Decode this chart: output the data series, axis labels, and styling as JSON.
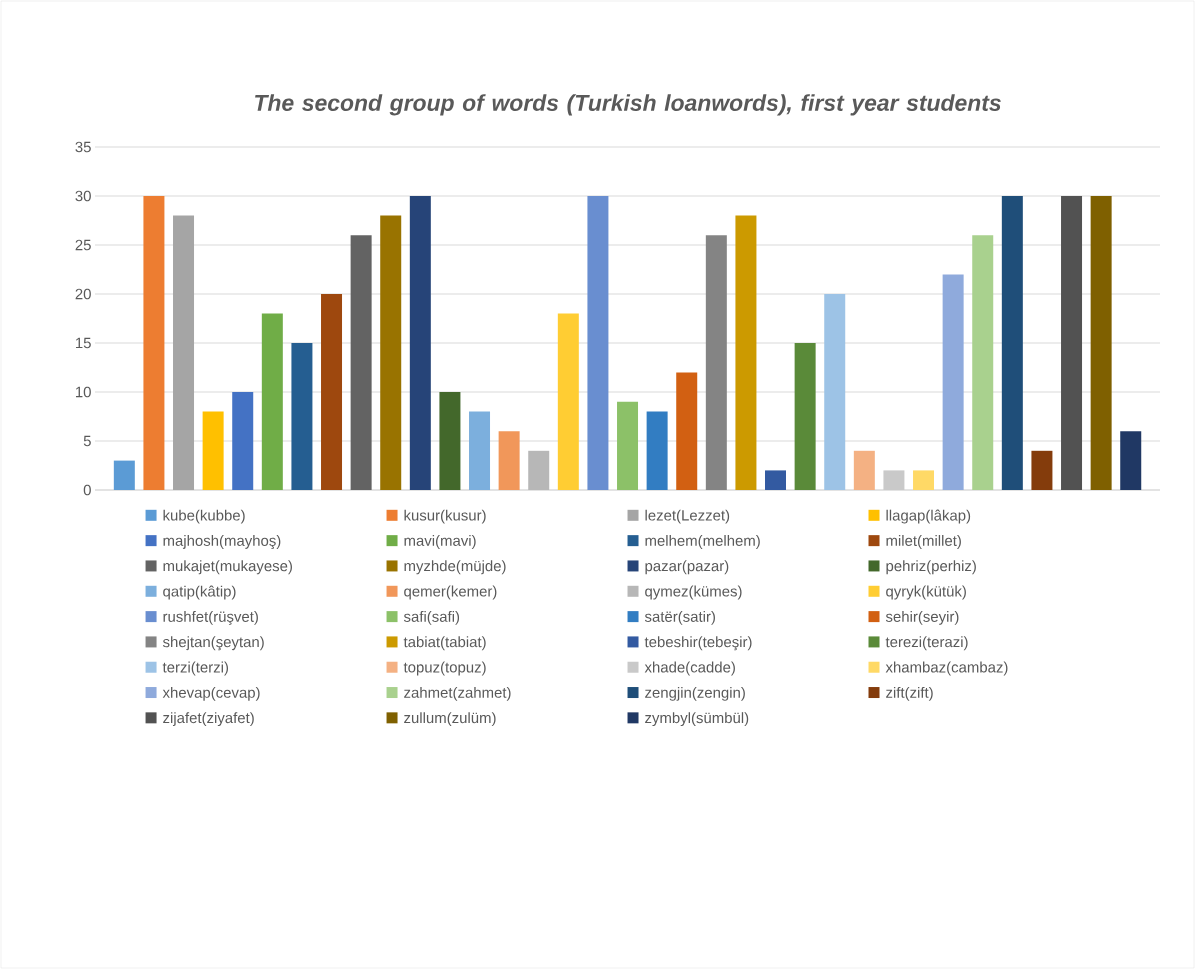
{
  "chart_data": {
    "type": "bar",
    "title": "The second group of words (Turkish loanwords), first year students",
    "categories": [
      null
    ],
    "ylim": [
      0,
      35
    ],
    "yticks": [
      0,
      5,
      10,
      15,
      20,
      25,
      30,
      35
    ],
    "grid": "y",
    "legend": "bottom",
    "series": [
      {
        "name": "kube(kubbe)",
        "color": "#5b9bd5",
        "values": [
          3
        ]
      },
      {
        "name": "kusur(kusur)",
        "color": "#ed7d31",
        "values": [
          30
        ]
      },
      {
        "name": "lezet(Lezzet)",
        "color": "#a5a5a5",
        "values": [
          28
        ]
      },
      {
        "name": "llagap(lâkap)",
        "color": "#ffc000",
        "values": [
          8
        ]
      },
      {
        "name": "majhosh(mayhoş)",
        "color": "#4472c4",
        "values": [
          10
        ]
      },
      {
        "name": "mavi(mavi)",
        "color": "#70ad47",
        "values": [
          18
        ]
      },
      {
        "name": "melhem(melhem)",
        "color": "#255e91",
        "values": [
          15
        ]
      },
      {
        "name": "milet(millet)",
        "color": "#9e480e",
        "values": [
          20
        ]
      },
      {
        "name": "mukajet(mukayese)",
        "color": "#636363",
        "values": [
          26
        ]
      },
      {
        "name": "myzhde(müjde)",
        "color": "#997300",
        "values": [
          28
        ]
      },
      {
        "name": "pazar(pazar)",
        "color": "#264478",
        "values": [
          30
        ]
      },
      {
        "name": "pehriz(perhiz)",
        "color": "#43682b",
        "values": [
          10
        ]
      },
      {
        "name": "qatip(kâtip)",
        "color": "#7cafdd",
        "values": [
          8
        ]
      },
      {
        "name": "qemer(kemer)",
        "color": "#f1975a",
        "values": [
          6
        ]
      },
      {
        "name": "qymez(kümes)",
        "color": "#b7b7b7",
        "values": [
          4
        ]
      },
      {
        "name": "qyryk(kütük)",
        "color": "#ffcd33",
        "values": [
          18
        ]
      },
      {
        "name": "rushfet(rüşvet)",
        "color": "#698ed0",
        "values": [
          30
        ]
      },
      {
        "name": "safi(safi)",
        "color": "#8cc168",
        "values": [
          9
        ]
      },
      {
        "name": "satër(satir)",
        "color": "#327dc2",
        "values": [
          8
        ]
      },
      {
        "name": "sehir(seyir)",
        "color": "#d26012",
        "values": [
          12
        ]
      },
      {
        "name": "shejtan(şeytan)",
        "color": "#848484",
        "values": [
          26
        ]
      },
      {
        "name": "tabiat(tabiat)",
        "color": "#cc9a00",
        "values": [
          28
        ]
      },
      {
        "name": "tebeshir(tebeşir)",
        "color": "#335aa1",
        "values": [
          2
        ]
      },
      {
        "name": "terezi(terazi)",
        "color": "#5a8a39",
        "values": [
          15
        ]
      },
      {
        "name": "terzi(terzi)",
        "color": "#9dc3e6",
        "values": [
          20
        ]
      },
      {
        "name": "topuz(topuz)",
        "color": "#f4b183",
        "values": [
          4
        ]
      },
      {
        "name": "xhade(cadde)",
        "color": "#c9c9c9",
        "values": [
          2
        ]
      },
      {
        "name": "xhambaz(cambaz)",
        "color": "#ffd966",
        "values": [
          2
        ]
      },
      {
        "name": "xhevap(cevap)",
        "color": "#8faadc",
        "values": [
          22
        ]
      },
      {
        "name": "zahmet(zahmet)",
        "color": "#a9d18e",
        "values": [
          26
        ]
      },
      {
        "name": "zengjin(zengin)",
        "color": "#1f4e79",
        "values": [
          30
        ]
      },
      {
        "name": "zift(zift)",
        "color": "#843c0c",
        "values": [
          4
        ]
      },
      {
        "name": "zijafet(ziyafet)",
        "color": "#525252",
        "values": [
          30
        ]
      },
      {
        "name": "zullum(zulüm)",
        "color": "#7f6000",
        "values": [
          30
        ]
      },
      {
        "name": "zymbyl(sümbül)",
        "color": "#203864",
        "values": [
          6
        ]
      }
    ]
  }
}
